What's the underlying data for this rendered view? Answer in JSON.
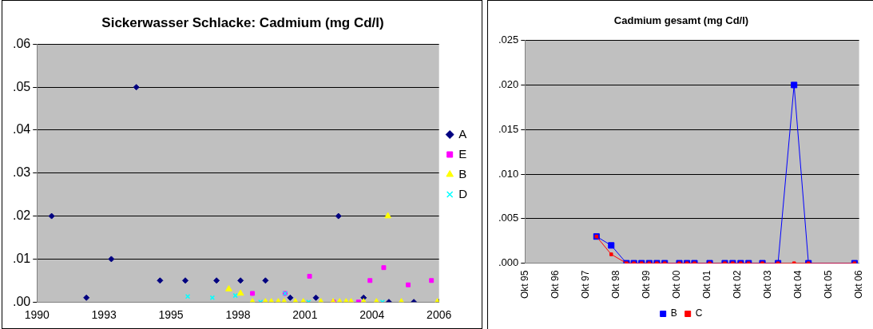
{
  "chart_data": [
    {
      "type": "scatter",
      "title": "Sickerwasser Schlacke: Cadmium (mg Cd/l)",
      "grid": "y",
      "legend": "right",
      "xlim": [
        "1990-05-27",
        "2006-10-30"
      ],
      "xticks": [
        {
          "value": "1990-05-27",
          "label": "1990"
        },
        {
          "value": "1993-02-20",
          "label": "1993"
        },
        {
          "value": "1995-11-17",
          "label": "1995"
        },
        {
          "value": "1998-08-13",
          "label": "1998"
        },
        {
          "value": "2001-05-09",
          "label": "2001"
        },
        {
          "value": "2004-02-03",
          "label": "2004"
        },
        {
          "value": "2006-10-30",
          "label": "2006"
        }
      ],
      "ylim": [
        0,
        0.06
      ],
      "yticks": [
        {
          "value": 0,
          "label": ".00"
        },
        {
          "value": 0.01,
          "label": ".01"
        },
        {
          "value": 0.02,
          "label": ".02"
        },
        {
          "value": 0.03,
          "label": ".03"
        },
        {
          "value": 0.04,
          "label": ".04"
        },
        {
          "value": 0.05,
          "label": ".05"
        },
        {
          "value": 0.06,
          "label": ".06"
        }
      ],
      "series": [
        {
          "name": "A",
          "color": "#000080",
          "marker": "diamond",
          "x": [
            "1991-01-01",
            "1992-06-03",
            "1993-06-10",
            "1994-06-18",
            "1995-06-07",
            "1996-06-18",
            "1997-09-27",
            "1998-09-20",
            "1999-09-27",
            "2000-10-01",
            "2001-10-19",
            "2002-09-20",
            "2003-10-01",
            "2004-10-12",
            "2005-10-19",
            "2006-10-30"
          ],
          "values": [
            0.02,
            0.001,
            0.01,
            0.05,
            0.005,
            0.005,
            0.005,
            0.005,
            0.005,
            0.001,
            0.001,
            0.02,
            0.001,
            0,
            0,
            0
          ]
        },
        {
          "name": "E",
          "color": "#ff00ff",
          "marker": "square",
          "x": [
            "1999-03-17",
            "2000-07-16",
            "2001-07-16",
            "2002-07-09",
            "2003-07-16",
            "2004-01-04",
            "2004-07-27",
            "2005-07-27",
            "2006-07-09"
          ],
          "values": [
            0.002,
            0.002,
            0.006,
            0,
            0,
            0.005,
            0.008,
            0.004,
            0.005
          ]
        },
        {
          "name": "B",
          "color": "#ffff00",
          "marker": "triangle",
          "x": [
            "1998-03-29",
            "1998-09-20",
            "1999-03-17",
            "1999-09-27",
            "1999-12-24",
            "2000-04-05",
            "2000-07-02",
            "2000-12-17",
            "2001-04-13",
            "2002-01-01",
            "2002-07-02",
            "2002-10-08",
            "2003-01-12",
            "2003-03-29",
            "2003-10-01",
            "2004-04-09",
            "2004-09-27",
            "2005-04-16",
            "2006-10-05"
          ],
          "values": [
            0.003,
            0.002,
            0,
            0,
            0,
            0,
            0,
            0,
            0,
            0,
            0,
            0,
            0,
            0,
            0,
            0,
            0.02,
            0,
            0
          ]
        },
        {
          "name": "D",
          "color": "#00ffff",
          "marker": "cross",
          "x": [
            "1996-07-24",
            "1997-07-27",
            "1998-07-05",
            "1999-07-16",
            "2000-07-16",
            "2001-07-02",
            "2004-07-09"
          ],
          "values": [
            0.0013,
            0.001,
            0.0015,
            0,
            0.002,
            0,
            0
          ]
        }
      ]
    },
    {
      "type": "line",
      "title": "Cadmium gesamt (mg Cd/l)",
      "marker": "square",
      "grid": "y",
      "legend": "bottom",
      "xlim": [
        "1995-10-01",
        "2006-10-01"
      ],
      "xticks": [
        {
          "value": "1995-10-01",
          "label": "Okt 95"
        },
        {
          "value": "1996-10-01",
          "label": "Okt 96"
        },
        {
          "value": "1997-10-01",
          "label": "Okt 97"
        },
        {
          "value": "1998-10-01",
          "label": "Okt 98"
        },
        {
          "value": "1999-10-01",
          "label": "Okt 99"
        },
        {
          "value": "2000-10-01",
          "label": "Okt 00"
        },
        {
          "value": "2001-10-01",
          "label": "Okt 01"
        },
        {
          "value": "2002-10-01",
          "label": "Okt 02"
        },
        {
          "value": "2003-10-01",
          "label": "Okt 03"
        },
        {
          "value": "2004-10-01",
          "label": "Okt 04"
        },
        {
          "value": "2005-10-01",
          "label": "Okt 05"
        },
        {
          "value": "2006-10-01",
          "label": "Okt 06"
        }
      ],
      "ylim": [
        0,
        0.025
      ],
      "yticks": [
        {
          "value": 0,
          "label": ".000"
        },
        {
          "value": 0.005,
          "label": ".005"
        },
        {
          "value": 0.01,
          "label": ".010"
        },
        {
          "value": 0.015,
          "label": ".015"
        },
        {
          "value": 0.02,
          "label": ".020"
        },
        {
          "value": 0.025,
          "label": ".025"
        }
      ],
      "x": [
        "1998-02-07",
        "1998-08-03",
        "1999-02-03",
        "1999-05-03",
        "1999-08-03",
        "1999-11-03",
        "2000-02-03",
        "2000-05-07",
        "2000-10-30",
        "2001-01-30",
        "2001-04-30",
        "2001-10-30",
        "2002-04-30",
        "2002-08-03",
        "2002-11-07",
        "2003-02-10",
        "2003-07-26",
        "2004-01-30",
        "2004-08-10",
        "2005-01-30",
        "2006-08-07"
      ],
      "series": [
        {
          "name": "B",
          "color": "#0000ff",
          "values": [
            0.003,
            0.002,
            0,
            0,
            0,
            0,
            0,
            0,
            0,
            0,
            0,
            0,
            0,
            0,
            0,
            0,
            0,
            0,
            0.02,
            0,
            0
          ]
        },
        {
          "name": "C",
          "color": "#ff0000",
          "values": [
            0.003,
            0.001,
            0,
            0,
            0,
            0,
            0,
            0,
            0,
            0,
            0,
            0,
            0,
            0,
            0,
            0,
            0,
            0,
            0,
            0,
            0
          ]
        }
      ]
    }
  ]
}
